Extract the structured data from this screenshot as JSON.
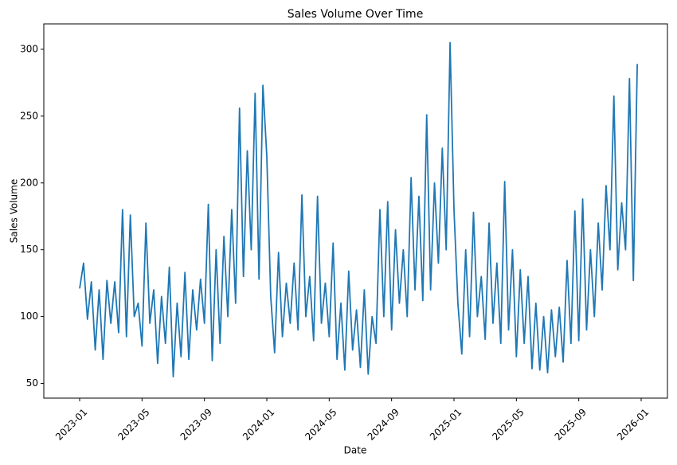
{
  "chart_data": {
    "type": "line",
    "title": "Sales Volume Over Time",
    "x_label": "Date",
    "y_label": "Sales Volume",
    "color": "#1f77b4",
    "x": [
      "2023-01",
      "2023-01",
      "2023-01",
      "2023-01",
      "2023-02",
      "2023-02",
      "2023-02",
      "2023-02",
      "2023-03",
      "2023-03",
      "2023-03",
      "2023-03",
      "2023-04",
      "2023-04",
      "2023-04",
      "2023-04",
      "2023-05",
      "2023-05",
      "2023-05",
      "2023-05",
      "2023-06",
      "2023-06",
      "2023-06",
      "2023-06",
      "2023-07",
      "2023-07",
      "2023-07",
      "2023-07",
      "2023-08",
      "2023-08",
      "2023-08",
      "2023-08",
      "2023-09",
      "2023-09",
      "2023-09",
      "2023-09",
      "2023-10",
      "2023-10",
      "2023-10",
      "2023-10",
      "2023-11",
      "2023-11",
      "2023-11",
      "2023-11",
      "2023-12",
      "2023-12",
      "2023-12",
      "2023-12",
      "2024-01",
      "2024-01",
      "2024-01",
      "2024-01",
      "2024-02",
      "2024-02",
      "2024-02",
      "2024-02",
      "2024-03",
      "2024-03",
      "2024-03",
      "2024-03",
      "2024-04",
      "2024-04",
      "2024-04",
      "2024-04",
      "2024-05",
      "2024-05",
      "2024-05",
      "2024-05",
      "2024-06",
      "2024-06",
      "2024-06",
      "2024-06",
      "2024-07",
      "2024-07",
      "2024-07",
      "2024-07",
      "2024-08",
      "2024-08",
      "2024-08",
      "2024-08",
      "2024-09",
      "2024-09",
      "2024-09",
      "2024-09",
      "2024-10",
      "2024-10",
      "2024-10",
      "2024-10",
      "2024-11",
      "2024-11",
      "2024-11",
      "2024-11",
      "2024-12",
      "2024-12",
      "2024-12",
      "2024-12",
      "2025-01",
      "2025-01",
      "2025-01",
      "2025-01",
      "2025-02",
      "2025-02",
      "2025-02",
      "2025-02",
      "2025-03",
      "2025-03",
      "2025-03",
      "2025-03",
      "2025-04",
      "2025-04",
      "2025-04",
      "2025-04",
      "2025-05",
      "2025-05",
      "2025-05",
      "2025-05",
      "2025-06",
      "2025-06",
      "2025-06",
      "2025-06",
      "2025-07",
      "2025-07",
      "2025-07",
      "2025-07",
      "2025-08",
      "2025-08",
      "2025-08",
      "2025-08",
      "2025-09",
      "2025-09",
      "2025-09",
      "2025-09",
      "2025-10",
      "2025-10",
      "2025-10",
      "2025-10",
      "2025-11",
      "2025-11",
      "2025-11",
      "2025-11",
      "2025-12",
      "2025-12",
      "2025-12",
      "2025-12"
    ],
    "values": [
      121,
      140,
      98,
      126,
      75,
      120,
      68,
      127,
      95,
      126,
      88,
      180,
      85,
      176,
      100,
      110,
      78,
      170,
      95,
      120,
      65,
      115,
      80,
      137,
      55,
      110,
      70,
      133,
      68,
      120,
      90,
      128,
      95,
      184,
      67,
      150,
      80,
      160,
      100,
      180,
      110,
      256,
      130,
      224,
      150,
      267,
      128,
      273,
      220,
      115,
      73,
      148,
      85,
      125,
      95,
      140,
      90,
      191,
      100,
      130,
      82,
      190,
      95,
      125,
      85,
      155,
      68,
      110,
      60,
      134,
      75,
      105,
      62,
      120,
      57,
      100,
      80,
      180,
      100,
      186,
      90,
      165,
      110,
      150,
      100,
      204,
      120,
      190,
      112,
      251,
      120,
      200,
      140,
      226,
      150,
      305,
      180,
      110,
      72,
      150,
      85,
      178,
      100,
      130,
      83,
      170,
      95,
      140,
      80,
      201,
      90,
      150,
      70,
      135,
      80,
      130,
      61,
      110,
      60,
      100,
      58,
      105,
      70,
      107,
      66,
      142,
      80,
      179,
      82,
      188,
      90,
      150,
      100,
      170,
      120,
      198,
      150,
      265,
      135,
      185,
      150,
      278,
      127,
      289
    ],
    "xlim": [
      "2023-01",
      "2026-01"
    ],
    "xticks": [
      "2023-01",
      "2023-05",
      "2023-09",
      "2024-01",
      "2024-05",
      "2024-09",
      "2025-01",
      "2025-05",
      "2025-09",
      "2026-01"
    ],
    "ylim": [
      39,
      319
    ],
    "yticks": [
      50,
      100,
      150,
      200,
      250,
      300
    ]
  }
}
